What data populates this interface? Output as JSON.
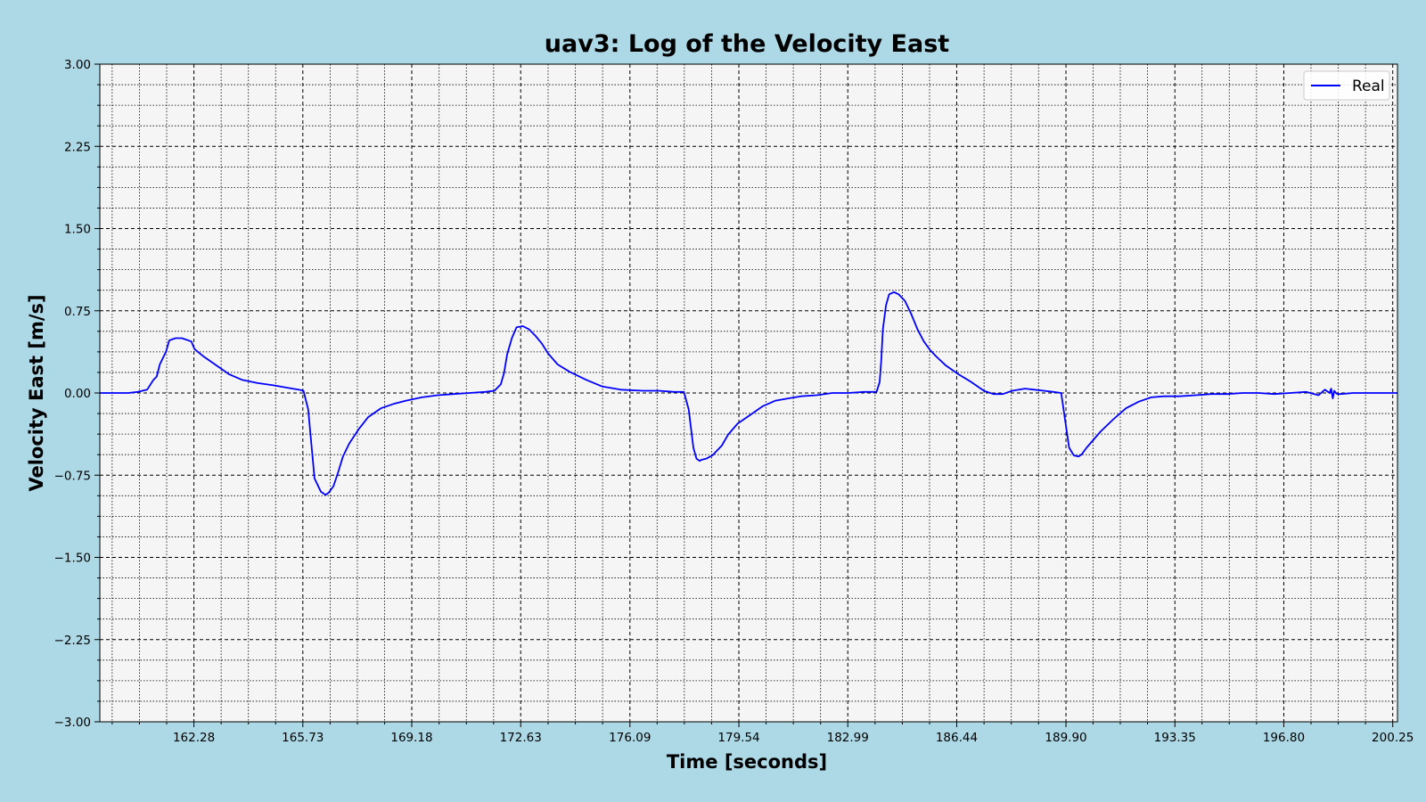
{
  "chart_data": {
    "type": "line",
    "title": "uav3: Log of the Velocity East",
    "xlabel": "Time [seconds]",
    "ylabel": "Velocity East [m/s]",
    "xlim": [
      159.3,
      200.4
    ],
    "ylim": [
      -3.0,
      3.0
    ],
    "x_ticks": [
      162.28,
      165.73,
      169.18,
      172.63,
      176.09,
      179.54,
      182.99,
      186.44,
      189.9,
      193.35,
      196.8,
      200.25
    ],
    "x_tick_labels": [
      "162.28",
      "165.73",
      "169.18",
      "172.63",
      "176.09",
      "179.54",
      "182.99",
      "186.44",
      "189.90",
      "193.35",
      "196.80",
      "200.25"
    ],
    "y_ticks": [
      -3.0,
      -2.25,
      -1.5,
      -0.75,
      0.0,
      0.75,
      1.5,
      2.25,
      3.0
    ],
    "y_tick_labels": [
      "−3.00",
      "−2.25",
      "−1.50",
      "−0.75",
      "0.00",
      "0.75",
      "1.50",
      "2.25",
      "3.00"
    ],
    "grid": true,
    "legend_position": "top-right",
    "colors": {
      "background": "#add8e6",
      "plot_background": "#f5f5f5",
      "series": "#0000ff"
    },
    "series": [
      {
        "name": "Real",
        "x": [
          159.3,
          160.2,
          160.5,
          160.8,
          161.0,
          161.1,
          161.2,
          161.4,
          161.5,
          161.7,
          161.9,
          162.2,
          162.3,
          162.6,
          163.0,
          163.4,
          163.8,
          164.3,
          164.8,
          165.2,
          165.4,
          165.6,
          165.75,
          165.9,
          166.1,
          166.3,
          166.45,
          166.55,
          166.7,
          166.85,
          167.0,
          167.2,
          167.5,
          167.8,
          168.2,
          168.6,
          169.0,
          169.5,
          170.0,
          170.5,
          171.0,
          171.5,
          171.8,
          172.0,
          172.1,
          172.2,
          172.35,
          172.5,
          172.7,
          172.9,
          173.1,
          173.3,
          173.5,
          173.8,
          174.2,
          174.7,
          175.2,
          175.8,
          176.5,
          177.0,
          177.5,
          177.8,
          177.95,
          178.1,
          178.2,
          178.3,
          178.35,
          178.5,
          178.7,
          179.0,
          179.2,
          179.5,
          179.9,
          180.3,
          180.7,
          181.1,
          181.5,
          182.0,
          182.5,
          183.0,
          183.5,
          183.9,
          184.0,
          184.05,
          184.1,
          184.2,
          184.3,
          184.45,
          184.6,
          184.8,
          185.0,
          185.2,
          185.4,
          185.6,
          185.8,
          186.1,
          186.5,
          186.9,
          187.3,
          187.6,
          187.9,
          188.2,
          188.6,
          188.9,
          189.2,
          189.5,
          189.75,
          189.9,
          190.0,
          190.15,
          190.3,
          190.4,
          190.55,
          190.7,
          191.0,
          191.4,
          191.8,
          192.2,
          192.6,
          193.0,
          193.5,
          194.0,
          194.5,
          195.0,
          195.5,
          196.0,
          196.5,
          197.0,
          197.5,
          197.9,
          198.1,
          198.25,
          198.3,
          198.35,
          198.4,
          198.45,
          198.5,
          198.6,
          199.0,
          199.5,
          200.0,
          200.4
        ],
        "y": [
          0.0,
          0.0,
          0.01,
          0.03,
          0.12,
          0.15,
          0.26,
          0.38,
          0.48,
          0.5,
          0.5,
          0.47,
          0.4,
          0.33,
          0.25,
          0.17,
          0.12,
          0.09,
          0.07,
          0.05,
          0.04,
          0.03,
          0.02,
          -0.15,
          -0.78,
          -0.9,
          -0.93,
          -0.91,
          -0.85,
          -0.72,
          -0.58,
          -0.46,
          -0.33,
          -0.22,
          -0.14,
          -0.1,
          -0.07,
          -0.04,
          -0.02,
          -0.01,
          0.0,
          0.01,
          0.02,
          0.08,
          0.18,
          0.35,
          0.5,
          0.6,
          0.61,
          0.58,
          0.52,
          0.45,
          0.36,
          0.26,
          0.19,
          0.12,
          0.06,
          0.03,
          0.02,
          0.02,
          0.01,
          0.01,
          -0.15,
          -0.5,
          -0.6,
          -0.62,
          -0.61,
          -0.6,
          -0.57,
          -0.48,
          -0.38,
          -0.28,
          -0.2,
          -0.12,
          -0.07,
          -0.05,
          -0.03,
          -0.02,
          0.0,
          0.0,
          0.01,
          0.01,
          0.1,
          0.3,
          0.58,
          0.8,
          0.9,
          0.92,
          0.9,
          0.84,
          0.72,
          0.58,
          0.47,
          0.39,
          0.33,
          0.25,
          0.17,
          0.1,
          0.02,
          -0.01,
          -0.01,
          0.02,
          0.04,
          0.03,
          0.02,
          0.01,
          0.0,
          -0.3,
          -0.5,
          -0.57,
          -0.58,
          -0.56,
          -0.5,
          -0.45,
          -0.35,
          -0.24,
          -0.14,
          -0.08,
          -0.04,
          -0.03,
          -0.03,
          -0.02,
          -0.01,
          -0.01,
          0.0,
          0.0,
          -0.01,
          0.0,
          0.01,
          -0.02,
          0.03,
          0.0,
          0.04,
          -0.05,
          0.02,
          0.0,
          -0.01,
          -0.01,
          0.0,
          0.0,
          0.0,
          0.0
        ]
      }
    ]
  }
}
